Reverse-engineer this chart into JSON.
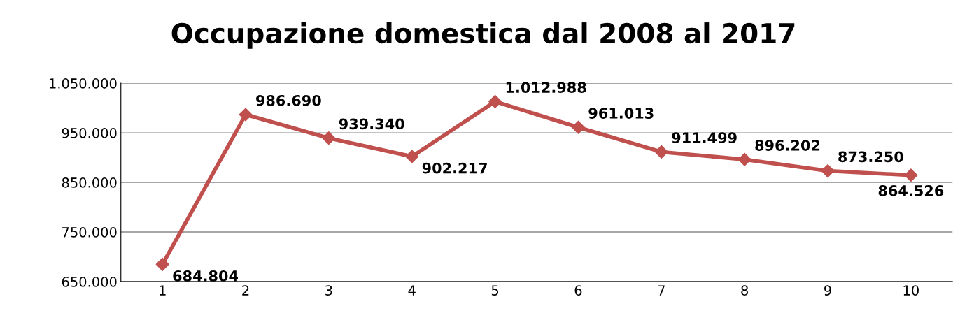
{
  "chart_data": {
    "type": "line",
    "title": "Occupazione domestica dal 2008 al 2017",
    "categories": [
      "1",
      "2",
      "3",
      "4",
      "5",
      "6",
      "7",
      "8",
      "9",
      "10"
    ],
    "series": [
      {
        "color": "#c0504d",
        "values": [
          684804,
          986690,
          939340,
          902217,
          1012988,
          961013,
          911499,
          896202,
          873250,
          864526
        ],
        "value_labels": [
          "684.804",
          "986.690",
          "939.340",
          "902.217",
          "1.012.988",
          "961.013",
          "911.499",
          "896.202",
          "873.250",
          "864.526"
        ]
      }
    ],
    "ylim": [
      650000,
      1050000
    ],
    "yticks": [
      {
        "value": 650000,
        "label": "650.000"
      },
      {
        "value": 750000,
        "label": "750.000"
      },
      {
        "value": 850000,
        "label": "850.000"
      },
      {
        "value": 950000,
        "label": "950.000"
      },
      {
        "value": 1050000,
        "label": "1.050.000"
      }
    ],
    "grid": "y",
    "legend": false,
    "marker": "diamond",
    "line_style": "solid"
  }
}
